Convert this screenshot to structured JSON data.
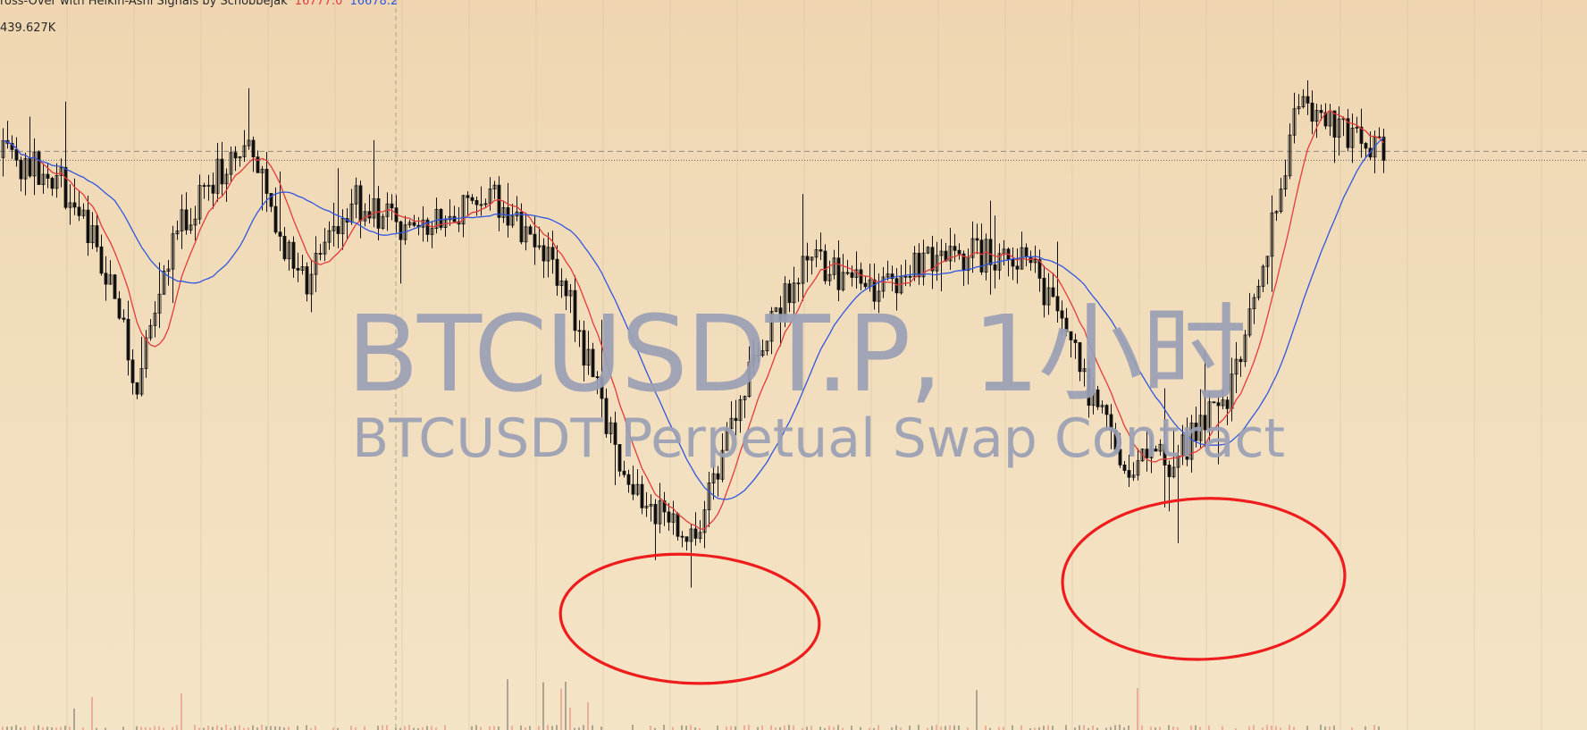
{
  "legend": {
    "indicator_name": "ross-Over with Heikin-Ashi Signals by Schobbejak",
    "fast_value": "16777.0",
    "slow_value": "16678.2",
    "volume_value": "439.627K"
  },
  "watermark": {
    "symbol": "BTCUSDT.P, 1小时",
    "description": "BTCUSDT Perpetual Swap Contract"
  },
  "colors": {
    "background": "#efd6b1",
    "candle": "#111111",
    "fast_ma": "#e23b3b",
    "slow_ma": "#2f56e0",
    "annotation": "#ee1c1c",
    "grid": "#d7c3a0",
    "watermark": "#9aa0b5"
  },
  "chart_data": {
    "type": "candlestick",
    "symbol": "BTCUSDT.P",
    "timeframe": "1小时",
    "visible_candles": 310,
    "price_path_keypoints": [
      [
        0,
        16740
      ],
      [
        12,
        16720
      ],
      [
        22,
        16625
      ],
      [
        30,
        16480
      ],
      [
        38,
        16650
      ],
      [
        48,
        16720
      ],
      [
        55,
        16770
      ],
      [
        62,
        16650
      ],
      [
        68,
        16590
      ],
      [
        78,
        16690
      ],
      [
        90,
        16660
      ],
      [
        110,
        16690
      ],
      [
        125,
        16600
      ],
      [
        140,
        16360
      ],
      [
        155,
        16300
      ],
      [
        168,
        16510
      ],
      [
        180,
        16620
      ],
      [
        195,
        16590
      ],
      [
        210,
        16630
      ],
      [
        230,
        16625
      ],
      [
        250,
        16390
      ],
      [
        262,
        16390
      ],
      [
        275,
        16470
      ],
      [
        290,
        16800
      ],
      [
        305,
        16750
      ],
      [
        330,
        16760
      ],
      [
        350,
        16740
      ]
    ],
    "moving_averages": [
      {
        "id": "fast",
        "color": "#e23b3b",
        "value": "16777.0"
      },
      {
        "id": "slow",
        "color": "#2f56e0",
        "value": "16678.2"
      }
    ],
    "annotations": [
      {
        "type": "hand-drawn-ellipse",
        "color": "#ee1c1c",
        "around": "low near candle 155"
      },
      {
        "type": "hand-drawn-ellipse",
        "color": "#ee1c1c",
        "around": "low near candle 255"
      }
    ],
    "grid": true
  }
}
